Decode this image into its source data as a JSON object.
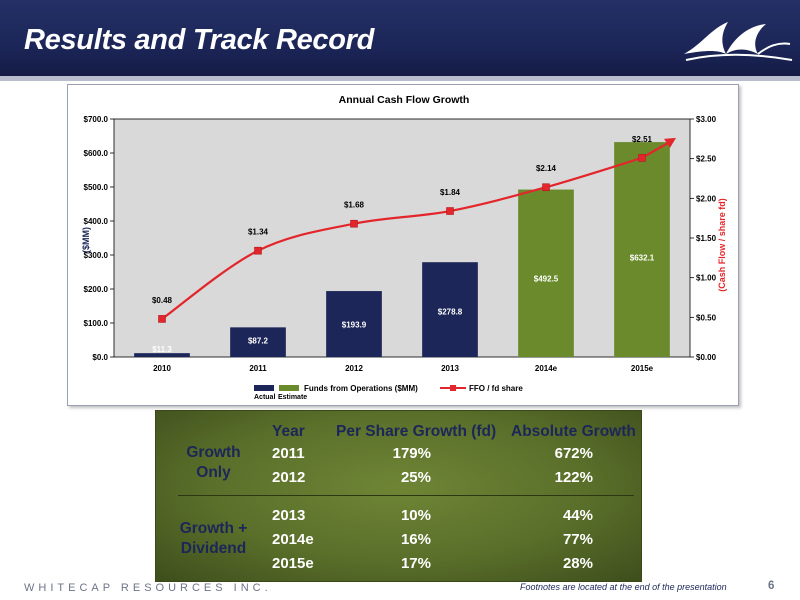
{
  "page": {
    "title": "Results and Track Record",
    "footer_company": "WHITECAP RESOURCES INC.",
    "footnote": "Footnotes are located at the end of the presentation",
    "page_number": "6"
  },
  "colors": {
    "navy": "#1c2658",
    "green": "#6a8a2c",
    "red": "#e3262b",
    "plot_bg": "#d9d9d9"
  },
  "chart_data": {
    "type": "bar",
    "title": "Annual Cash Flow Growth",
    "ylabel": "($MM)",
    "y2label": "(Cash Flow / share fd)",
    "ylim": [
      0,
      700
    ],
    "y2lim": [
      0,
      3
    ],
    "yticks": [
      "$0.0",
      "$100.0",
      "$200.0",
      "$300.0",
      "$400.0",
      "$500.0",
      "$600.0",
      "$700.0"
    ],
    "y2ticks": [
      "$0.00",
      "$0.50",
      "$1.00",
      "$1.50",
      "$2.00",
      "$2.50",
      "$3.00"
    ],
    "categories": [
      "2010",
      "2011",
      "2012",
      "2013",
      "2014e",
      "2015e"
    ],
    "series": [
      {
        "name": "Funds from Operations ($MM)",
        "kind": "bar",
        "values": [
          11.3,
          87.2,
          193.9,
          278.8,
          492.5,
          632.1
        ],
        "labels": [
          "$11.3",
          "$87.2",
          "$193.9",
          "$278.8",
          "$492.5",
          "$632.1"
        ],
        "bar_types": [
          "actual",
          "actual",
          "actual",
          "actual",
          "estimate",
          "estimate"
        ]
      },
      {
        "name": "FFO / fd share",
        "kind": "line",
        "axis": "right",
        "values": [
          0.48,
          1.34,
          1.68,
          1.84,
          2.14,
          2.51
        ],
        "labels": [
          "$0.48",
          "$1.34",
          "$1.68",
          "$1.84",
          "$2.14",
          "$2.51"
        ]
      }
    ],
    "legend": {
      "actual_label": "Actual",
      "estimate_label": "Estimate",
      "bar_label": "Funds from Operations ($MM)",
      "line_label": "FFO / fd share",
      "placement": "bottom"
    },
    "grid": false
  },
  "table": {
    "headers": {
      "year": "Year",
      "per_share": "Per Share Growth (fd)",
      "absolute": "Absolute Growth"
    },
    "groups": [
      {
        "label_line1": "Growth",
        "label_line2": "Only",
        "rows": [
          {
            "year": "2011",
            "per_share": "179%",
            "absolute": "672%"
          },
          {
            "year": "2012",
            "per_share": "25%",
            "absolute": "122%"
          }
        ]
      },
      {
        "label_line1": "Growth +",
        "label_line2": "Dividend",
        "rows": [
          {
            "year": "2013",
            "per_share": "10%",
            "absolute": "44%"
          },
          {
            "year": "2014e",
            "per_share": "16%",
            "absolute": "77%"
          },
          {
            "year": "2015e",
            "per_share": "17%",
            "absolute": "28%"
          }
        ]
      }
    ]
  }
}
